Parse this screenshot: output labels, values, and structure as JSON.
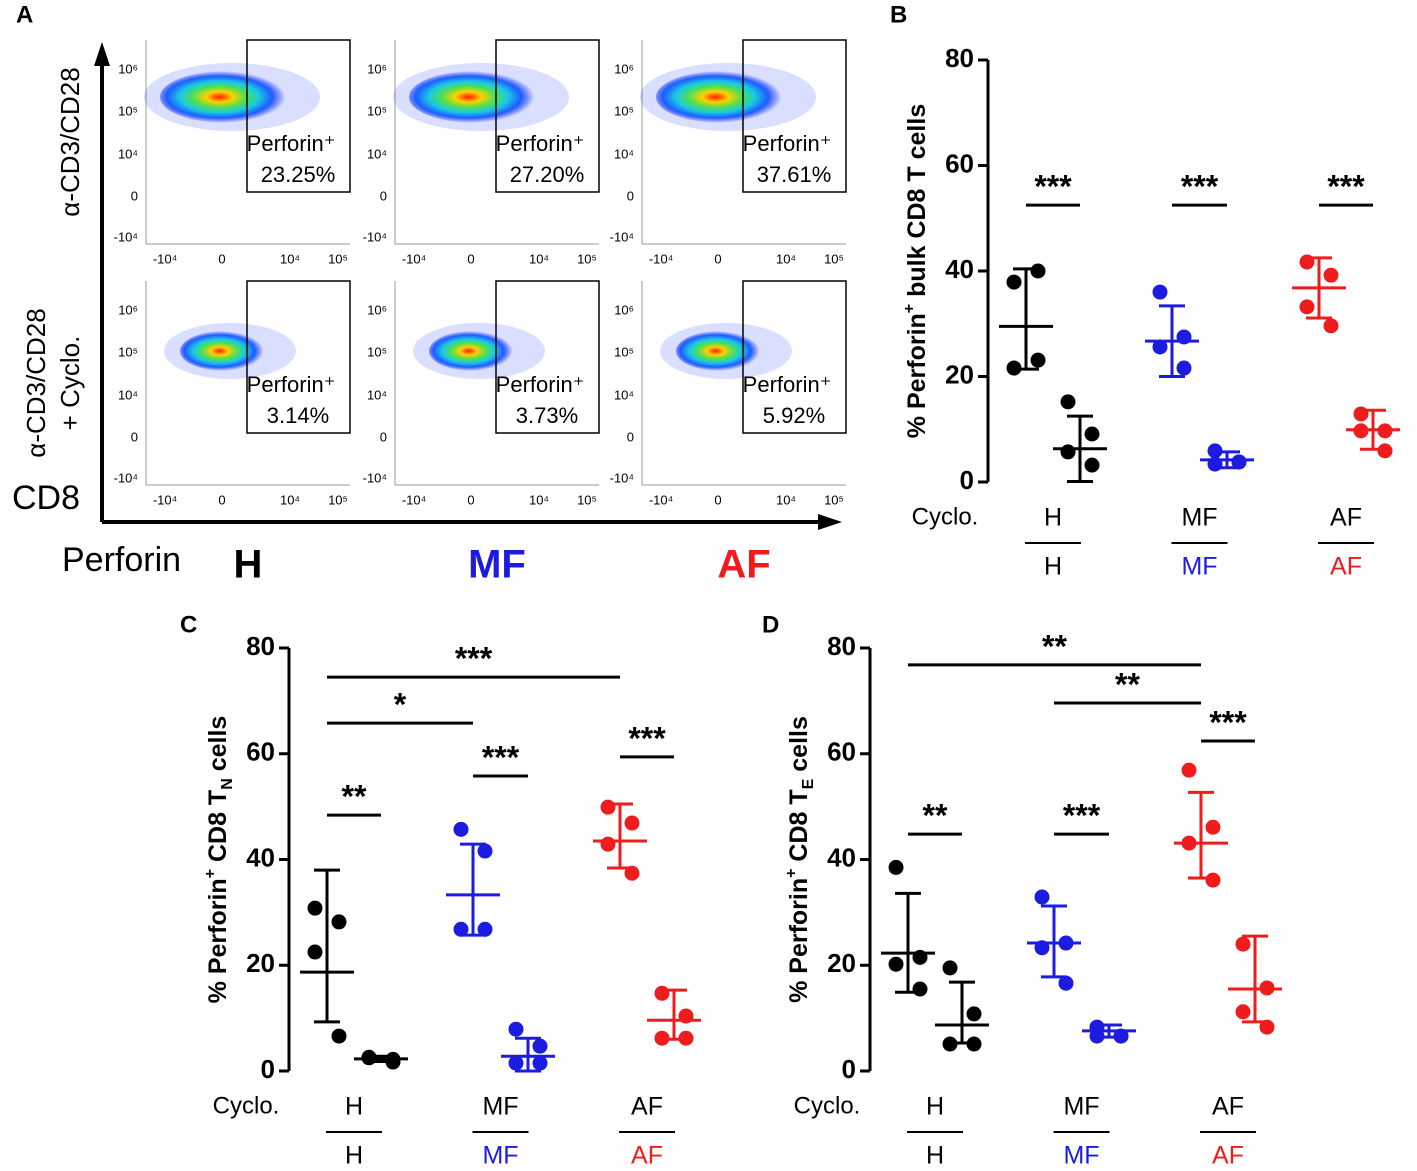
{
  "flow": {
    "label": "A",
    "y_title": "CD8",
    "x_title": "Perforin",
    "conditions": [
      [
        "α-CD3/CD28"
      ],
      [
        "α-CD3/CD28",
        "+ Cyclo."
      ]
    ],
    "groups": [
      {
        "name": "H",
        "color": "#000000"
      },
      {
        "name": "MF",
        "color": "#1c1ce0"
      },
      {
        "name": "AF",
        "color": "#ee1c1c"
      }
    ],
    "xticks": [
      "-10⁴",
      "0",
      "10⁴",
      "10⁵"
    ],
    "yticks": [
      "10⁶",
      "10⁵",
      "10⁴",
      "0",
      "-10⁴"
    ],
    "gates": [
      [
        {
          "name": "Perforin⁺",
          "percent": "23.25%"
        },
        {
          "name": "Perforin⁺",
          "percent": "27.20%"
        },
        {
          "name": "Perforin⁺",
          "percent": "37.61%"
        }
      ],
      [
        {
          "name": "Perforin⁺",
          "percent": "3.14%"
        },
        {
          "name": "Perforin⁺",
          "percent": "3.73%"
        },
        {
          "name": "Perforin⁺",
          "percent": "5.92%"
        }
      ]
    ]
  },
  "chart_data": [
    {
      "type": "dot",
      "label": "B",
      "ylabel": [
        {
          "text": "% Perforin"
        },
        {
          "sup": "+"
        },
        {
          "text": " bulk CD8 T cells"
        }
      ],
      "ylim": [
        0,
        80
      ],
      "yticks": [
        0,
        20,
        40,
        60,
        80
      ],
      "row_label": "Cyclo.",
      "series": [
        {
          "name": "H",
          "color": "#000000",
          "values": [
            [
              37.9,
              40.0,
              21.6,
              23.1
            ],
            [
              15.2,
              9.1,
              5.7,
              3.2
            ]
          ],
          "means": [
            29.5,
            6.3
          ],
          "lows": [
            21.4,
            0.1
          ],
          "highs": [
            40.4,
            12.5
          ]
        },
        {
          "name": "MF",
          "color": "#1c1ce0",
          "values": [
            [
              36.0,
              27.5,
              25.6,
              21.6
            ],
            [
              5.9,
              3.8,
              3.4,
              3.8
            ]
          ],
          "means": [
            26.7,
            4.2
          ],
          "lows": [
            20.0,
            2.7
          ],
          "highs": [
            33.4,
            5.7
          ]
        },
        {
          "name": "AF",
          "color": "#ee1c1c",
          "values": [
            [
              41.7,
              39.2,
              33.2,
              29.6
            ],
            [
              12.9,
              9.7,
              9.7,
              5.9
            ]
          ],
          "means": [
            36.8,
            9.9
          ],
          "lows": [
            31.1,
            6.2
          ],
          "highs": [
            42.5,
            13.6
          ]
        }
      ],
      "comparisons": [
        {
          "label": "***",
          "from": 0,
          "to": 1,
          "y": 52.5
        },
        {
          "label": "***",
          "from": 2,
          "to": 3,
          "y": 52.5
        },
        {
          "label": "***",
          "from": 4,
          "to": 5,
          "y": 52.5
        }
      ]
    },
    {
      "type": "dot",
      "label": "C",
      "ylabel": [
        {
          "text": "% Perforin"
        },
        {
          "sup": "+"
        },
        {
          "text": " CD8 T"
        },
        {
          "sub": "N"
        },
        {
          "text": " cells"
        }
      ],
      "ylim": [
        0,
        80
      ],
      "yticks": [
        0,
        20,
        40,
        60,
        80
      ],
      "row_label": "Cyclo.",
      "series": [
        {
          "name": "H",
          "color": "#000000",
          "values": [
            [
              30.8,
              28.2,
              22.5,
              6.6
            ],
            [
              2.6,
              2.2,
              2.5,
              1.7
            ]
          ],
          "means": [
            18.7,
            2.3
          ],
          "lows": [
            9.3,
            1.8
          ],
          "highs": [
            38.0,
            2.8
          ]
        },
        {
          "name": "MF",
          "color": "#1c1ce0",
          "values": [
            [
              45.7,
              41.6,
              26.8,
              26.8
            ],
            [
              7.9,
              4.7,
              1.5,
              1.5
            ]
          ],
          "means": [
            33.3,
            2.8
          ],
          "lows": [
            25.7,
            0
          ],
          "highs": [
            42.9,
            6.2
          ]
        },
        {
          "name": "AF",
          "color": "#ee1c1c",
          "values": [
            [
              49.9,
              46.9,
              42.9,
              37.4
            ],
            [
              14.7,
              10.4,
              6.2,
              6.2
            ]
          ],
          "means": [
            43.5,
            9.6
          ],
          "lows": [
            38.4,
            6.0
          ],
          "highs": [
            50.5,
            15.3
          ]
        }
      ],
      "comparisons": [
        {
          "label": "**",
          "from": 0,
          "to": 1,
          "y": 48.4
        },
        {
          "label": "***",
          "from": 2,
          "to": 3,
          "y": 55.8
        },
        {
          "label": "***",
          "from": 4,
          "to": 5,
          "y": 59.4
        },
        {
          "label": "*",
          "from": 0,
          "to": 2,
          "y": 65.8
        },
        {
          "label": "***",
          "from": 0,
          "to": 4,
          "y": 74.5
        }
      ]
    },
    {
      "type": "dot",
      "label": "D",
      "ylabel": [
        {
          "text": "% Perforin"
        },
        {
          "sup": "+"
        },
        {
          "text": " CD8 T"
        },
        {
          "sub": "E"
        },
        {
          "text": " cells"
        }
      ],
      "ylim": [
        0,
        80
      ],
      "yticks": [
        0,
        20,
        40,
        60,
        80
      ],
      "row_label": "Cyclo.",
      "series": [
        {
          "name": "H",
          "color": "#000000",
          "values": [
            [
              38.5,
              21.5,
              20.2,
              15.5
            ],
            [
              19.5,
              10.8,
              5.1,
              5.1
            ]
          ],
          "means": [
            22.3,
            8.7
          ],
          "lows": [
            14.9,
            5.3
          ],
          "highs": [
            33.6,
            16.8
          ]
        },
        {
          "name": "MF",
          "color": "#1c1ce0",
          "values": [
            [
              32.9,
              24.2,
              23.3,
              16.6
            ],
            [
              8.3,
              6.6,
              6.6,
              6.6
            ]
          ],
          "means": [
            24.2,
            7.6
          ],
          "lows": [
            17.8,
            6.4
          ],
          "highs": [
            31.2,
            8.7
          ]
        },
        {
          "name": "AF",
          "color": "#ee1c1c",
          "values": [
            [
              56.9,
              46.1,
              43.1,
              36.1
            ],
            [
              24.0,
              15.7,
              11.2,
              8.3
            ]
          ],
          "means": [
            43.1,
            15.5
          ],
          "lows": [
            36.5,
            9.3
          ],
          "highs": [
            52.7,
            25.5
          ]
        }
      ],
      "comparisons": [
        {
          "label": "**",
          "from": 0,
          "to": 1,
          "y": 44.8
        },
        {
          "label": "***",
          "from": 2,
          "to": 3,
          "y": 44.8
        },
        {
          "label": "***",
          "from": 4,
          "to": 5,
          "y": 62.4
        },
        {
          "label": "**",
          "from": 2,
          "to": 4,
          "y": 69.6
        },
        {
          "label": "**",
          "from": 0,
          "to": 4,
          "y": 76.8
        }
      ]
    }
  ]
}
